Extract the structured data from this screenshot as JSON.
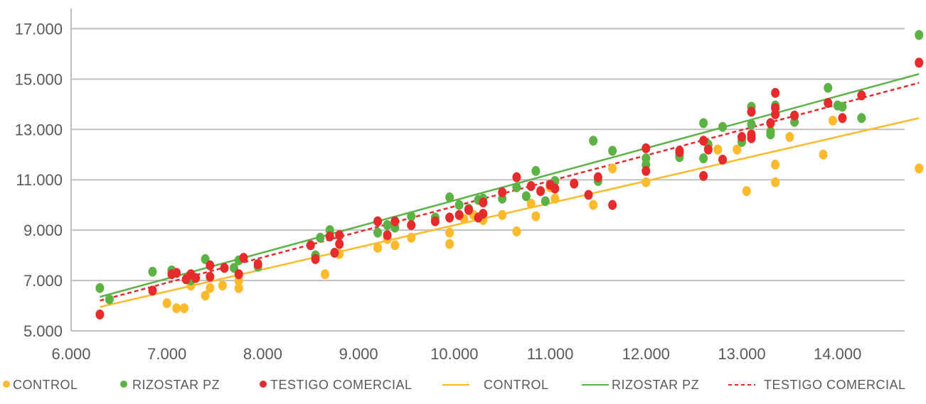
{
  "chart_data": {
    "type": "scatter",
    "xlim": [
      6000,
      14700
    ],
    "ylim": [
      5000,
      17800
    ],
    "xticks": [
      6000,
      7000,
      8000,
      9000,
      10000,
      11000,
      12000,
      13000,
      14000
    ],
    "yticks": [
      5000,
      7000,
      9000,
      11000,
      13000,
      15000,
      17000
    ],
    "xtick_labels": [
      "6.000",
      "7.000",
      "8.000",
      "9.000",
      "10.000",
      "11.000",
      "12.000",
      "13.000",
      "14.000"
    ],
    "ytick_labels": [
      "5.000",
      "7.000",
      "9.000",
      "11.000",
      "13.000",
      "15.000",
      "17.000"
    ],
    "grid": "horizontal",
    "legend_position": "bottom",
    "series": [
      {
        "name": "CONTROL",
        "kind": "scatter",
        "color": "#FDBA2C",
        "points": [
          [
            7000,
            6100
          ],
          [
            7100,
            5900
          ],
          [
            7180,
            5900
          ],
          [
            7250,
            6800
          ],
          [
            7400,
            6400
          ],
          [
            7450,
            6700
          ],
          [
            7580,
            6800
          ],
          [
            7750,
            6700
          ],
          [
            7750,
            7000
          ],
          [
            8550,
            7950
          ],
          [
            8650,
            7250
          ],
          [
            8800,
            8050
          ],
          [
            9200,
            8300
          ],
          [
            9300,
            8650
          ],
          [
            9380,
            8400
          ],
          [
            9550,
            8700
          ],
          [
            9950,
            8450
          ],
          [
            9950,
            8900
          ],
          [
            10100,
            9450
          ],
          [
            10200,
            9600
          ],
          [
            10300,
            9400
          ],
          [
            10500,
            9600
          ],
          [
            10650,
            8950
          ],
          [
            10800,
            10050
          ],
          [
            10850,
            9550
          ],
          [
            11000,
            10700
          ],
          [
            11050,
            10250
          ],
          [
            11450,
            10000
          ],
          [
            11650,
            11450
          ],
          [
            12000,
            10900
          ],
          [
            12750,
            12200
          ],
          [
            12950,
            12200
          ],
          [
            13050,
            10550
          ],
          [
            13300,
            12950
          ],
          [
            13350,
            11600
          ],
          [
            13350,
            10900
          ],
          [
            13500,
            12700
          ],
          [
            13850,
            12000
          ],
          [
            13950,
            13350
          ],
          [
            14850,
            11450
          ]
        ]
      },
      {
        "name": "RIZOSTAR  PZ",
        "kind": "scatter",
        "color": "#5DB246",
        "points": [
          [
            6300,
            6700
          ],
          [
            6400,
            6250
          ],
          [
            6850,
            7350
          ],
          [
            7050,
            7400
          ],
          [
            7250,
            7000
          ],
          [
            7400,
            7850
          ],
          [
            7700,
            7500
          ],
          [
            7750,
            7800
          ],
          [
            7950,
            7550
          ],
          [
            8550,
            8000
          ],
          [
            8600,
            8700
          ],
          [
            8700,
            9000
          ],
          [
            9200,
            8900
          ],
          [
            9300,
            9200
          ],
          [
            9380,
            9100
          ],
          [
            9550,
            9550
          ],
          [
            9800,
            9500
          ],
          [
            9950,
            10300
          ],
          [
            10050,
            10000
          ],
          [
            10150,
            9850
          ],
          [
            10250,
            10200
          ],
          [
            10300,
            10250
          ],
          [
            10500,
            10250
          ],
          [
            10650,
            10700
          ],
          [
            10750,
            10350
          ],
          [
            10850,
            11350
          ],
          [
            10950,
            10150
          ],
          [
            11050,
            10950
          ],
          [
            11450,
            12550
          ],
          [
            11500,
            10950
          ],
          [
            11650,
            12150
          ],
          [
            12000,
            11600
          ],
          [
            12000,
            11850
          ],
          [
            12350,
            11950
          ],
          [
            12350,
            11900
          ],
          [
            12600,
            13250
          ],
          [
            12600,
            11850
          ],
          [
            12650,
            12400
          ],
          [
            12800,
            13100
          ],
          [
            13000,
            12550
          ],
          [
            13000,
            12500
          ],
          [
            13100,
            13200
          ],
          [
            13100,
            13900
          ],
          [
            13300,
            12900
          ],
          [
            13300,
            12800
          ],
          [
            13350,
            13950
          ],
          [
            13550,
            13300
          ],
          [
            13900,
            14650
          ],
          [
            14000,
            13950
          ],
          [
            14050,
            13900
          ],
          [
            14250,
            13450
          ],
          [
            14850,
            16750
          ]
        ]
      },
      {
        "name": "TESTIGO  COMERCIAL",
        "kind": "scatter",
        "color": "#E52B2B",
        "points": [
          [
            6300,
            5650
          ],
          [
            6850,
            6600
          ],
          [
            7050,
            7250
          ],
          [
            7100,
            7300
          ],
          [
            7200,
            7050
          ],
          [
            7250,
            7250
          ],
          [
            7300,
            7100
          ],
          [
            7450,
            7150
          ],
          [
            7450,
            7600
          ],
          [
            7600,
            7500
          ],
          [
            7750,
            7250
          ],
          [
            7800,
            7900
          ],
          [
            7950,
            7650
          ],
          [
            8500,
            8400
          ],
          [
            8550,
            7850
          ],
          [
            8700,
            8750
          ],
          [
            8750,
            8100
          ],
          [
            8800,
            8800
          ],
          [
            8800,
            8450
          ],
          [
            9200,
            9350
          ],
          [
            9300,
            8800
          ],
          [
            9380,
            9350
          ],
          [
            9550,
            9200
          ],
          [
            9800,
            9350
          ],
          [
            9950,
            9500
          ],
          [
            10050,
            9600
          ],
          [
            10150,
            9800
          ],
          [
            10250,
            9500
          ],
          [
            10300,
            9650
          ],
          [
            10300,
            10100
          ],
          [
            10500,
            10500
          ],
          [
            10650,
            11100
          ],
          [
            10800,
            10750
          ],
          [
            10900,
            10550
          ],
          [
            11000,
            10800
          ],
          [
            11050,
            10650
          ],
          [
            11250,
            10850
          ],
          [
            11400,
            10400
          ],
          [
            11500,
            11100
          ],
          [
            11650,
            10000
          ],
          [
            12000,
            12250
          ],
          [
            12000,
            11350
          ],
          [
            12350,
            12150
          ],
          [
            12350,
            12100
          ],
          [
            12600,
            11150
          ],
          [
            12600,
            12550
          ],
          [
            12650,
            12200
          ],
          [
            12800,
            11800
          ],
          [
            13000,
            12700
          ],
          [
            13100,
            12800
          ],
          [
            13100,
            12650
          ],
          [
            13100,
            13700
          ],
          [
            13300,
            13250
          ],
          [
            13350,
            14450
          ],
          [
            13350,
            13850
          ],
          [
            13350,
            13600
          ],
          [
            13550,
            13550
          ],
          [
            13900,
            14050
          ],
          [
            14050,
            13450
          ],
          [
            14250,
            14350
          ],
          [
            14850,
            15650
          ]
        ]
      },
      {
        "name": "CONTROL",
        "kind": "line",
        "style": "solid",
        "color": "#FDBA2C",
        "points": [
          [
            6300,
            5950
          ],
          [
            14850,
            13450
          ]
        ]
      },
      {
        "name": "RIZOSTAR  PZ",
        "kind": "line",
        "style": "solid",
        "color": "#5DB246",
        "points": [
          [
            6300,
            6350
          ],
          [
            14850,
            15200
          ]
        ]
      },
      {
        "name": "TESTIGO  COMERCIAL",
        "kind": "line",
        "style": "dashed",
        "color": "#E52B2B",
        "points": [
          [
            6300,
            6200
          ],
          [
            14850,
            14850
          ]
        ]
      }
    ]
  }
}
